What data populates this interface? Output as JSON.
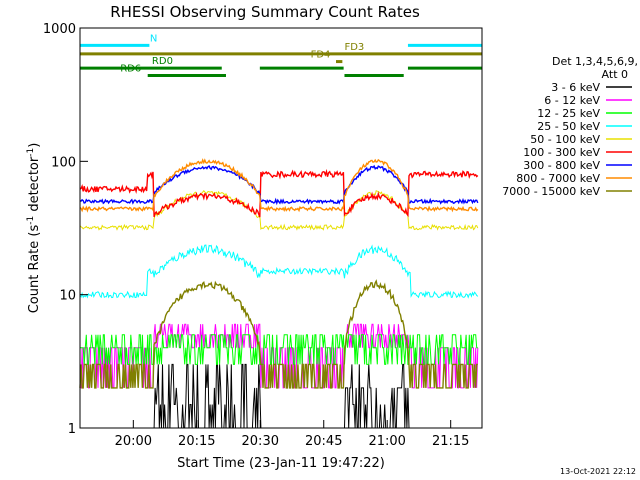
{
  "chart_data": {
    "type": "line",
    "title": "RHESSI Observing Summary Count Rates",
    "xlabel": "Start Time (23-Jan-11 19:47:22)",
    "ylabel": "Count Rate (s",
    "ylabel_sup1": "-1",
    "ylabel_mid": " detector",
    "ylabel_sup2": "-1",
    "ylabel_end": ")",
    "y_scale": "log",
    "ylim": [
      1,
      1000
    ],
    "x_start": "19:47:22",
    "xlim_minutes": [
      0,
      95
    ],
    "x_ticks": [
      {
        "label": "20:00",
        "minute": 12.6
      },
      {
        "label": "20:15",
        "minute": 27.6
      },
      {
        "label": "20:30",
        "minute": 42.6
      },
      {
        "label": "20:45",
        "minute": 57.6
      },
      {
        "label": "21:00",
        "minute": 72.6
      },
      {
        "label": "21:15",
        "minute": 87.6
      }
    ],
    "y_ticks": [
      {
        "label": "1",
        "value": 1
      },
      {
        "label": "10",
        "value": 10
      },
      {
        "label": "100",
        "value": 100
      },
      {
        "label": "1000",
        "value": 1000
      }
    ],
    "legend": {
      "placement": "right",
      "header": [
        "Det 1,3,4,5,6,9,",
        "Att 0"
      ]
    },
    "orbit_gaps": [
      {
        "start": 17.5,
        "end": 42.5
      },
      {
        "start": 62.5,
        "end": 77.5
      }
    ],
    "series": [
      {
        "name": "3 - 6 keV",
        "color": "#000000"
      },
      {
        "name": "6 - 12 keV",
        "color": "#ff00ff"
      },
      {
        "name": "12 - 25 keV",
        "color": "#00ff00"
      },
      {
        "name": "25 - 50 keV",
        "color": "#00ffff"
      },
      {
        "name": "50 - 100 keV",
        "color": "#e8e000"
      },
      {
        "name": "100 - 300 keV",
        "color": "#ff0000"
      },
      {
        "name": "300 - 800 keV",
        "color": "#0000ff"
      },
      {
        "name": "800 - 7000 keV",
        "color": "#ff8c00"
      },
      {
        "name": "7000 - 15000 keV",
        "color": "#808000"
      }
    ],
    "flags": [
      {
        "label": "N",
        "color": "#00e5ff",
        "label_minute": 16.5,
        "level": 740,
        "segments": [
          [
            0,
            16.4
          ],
          [
            77.5,
            95
          ]
        ]
      },
      {
        "label": "FD3",
        "color": "#808000",
        "label_minute": 62.5,
        "level": 640,
        "segments": [
          [
            0,
            95
          ]
        ]
      },
      {
        "label": "FD4",
        "color": "#808000",
        "label_minute": 54.5,
        "level": 560,
        "segments": [
          [
            60.5,
            62.0
          ]
        ]
      },
      {
        "label": "RD0",
        "color": "#008000",
        "label_minute": 17.0,
        "level": 500,
        "segments": [
          [
            0,
            33.5
          ],
          [
            42.5,
            62.3
          ],
          [
            77.5,
            95
          ]
        ]
      },
      {
        "label": "RD6",
        "color": "#008000",
        "label_minute": 9.5,
        "level": 440,
        "segments": [
          [
            16.0,
            34.5
          ],
          [
            62.5,
            76.5
          ]
        ]
      }
    ],
    "timestamp": "13-Oct-2021 22:12"
  }
}
